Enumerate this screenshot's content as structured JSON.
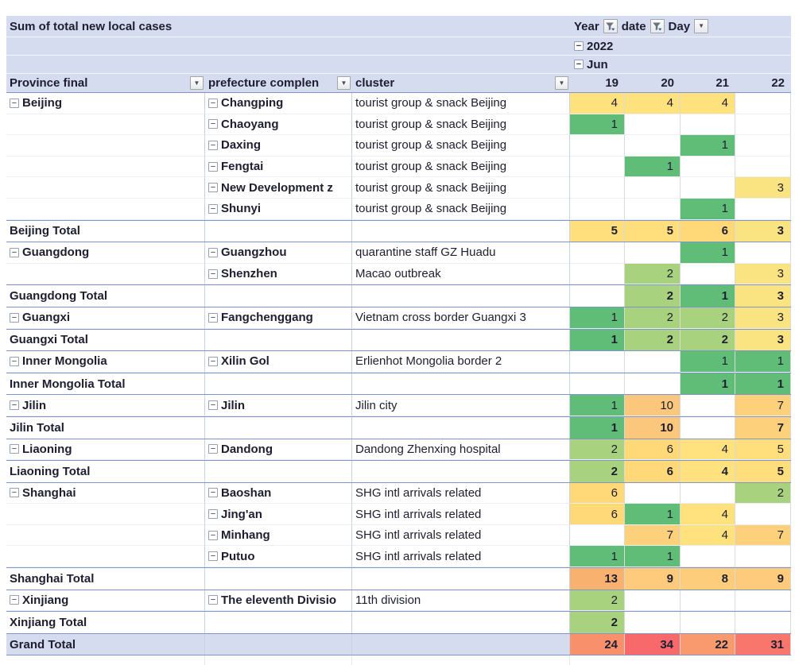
{
  "title": "Sum of total new local cases",
  "filters": {
    "year": {
      "label": "Year",
      "icon": "funnel-filter-icon"
    },
    "date": {
      "label": "date",
      "icon": "funnel-filter-icon"
    },
    "day": {
      "label": "Day",
      "icon": "chevron-down-icon"
    }
  },
  "year_value": "2022",
  "month_value": "Jun",
  "columns": {
    "province": "Province final",
    "prefecture": "prefecture complen",
    "cluster": "cluster",
    "days": [
      "19",
      "20",
      "21",
      "22"
    ]
  },
  "colors": {
    "header_bg": "#d5dcef",
    "total_border_blue": "#7e96cc",
    "gridline_gray": "#dadada",
    "gridline_label": "#c9d1e6",
    "scale_min_green": "#5fbd78",
    "scale_mid_yellow": "#fae481",
    "scale_max_red": "#f8696b"
  },
  "palette": {
    "1": "#5fbd78",
    "2": "#a9d27e",
    "3": "#fae481",
    "4": "#ffe17d",
    "5": "#ffde7b",
    "6": "#ffd978",
    "7": "#fdd17b",
    "8": "#fdcd7c",
    "9": "#fdcb7b",
    "10": "#fbc77d",
    "13": "#f9b16f",
    "22": "#f99a6e",
    "24": "#f9906c",
    "31": "#f8766c",
    "34": "#f8696b"
  },
  "rows": [
    {
      "type": "data",
      "province": "Beijing",
      "prefecture": "Changping",
      "cluster": "tourist group & snack Beijing",
      "values": [
        4,
        4,
        4,
        null
      ]
    },
    {
      "type": "data",
      "province": null,
      "prefecture": "Chaoyang",
      "cluster": "tourist group & snack Beijing",
      "values": [
        1,
        null,
        null,
        null
      ]
    },
    {
      "type": "data",
      "province": null,
      "prefecture": "Daxing",
      "cluster": "tourist group & snack Beijing",
      "values": [
        null,
        null,
        1,
        null
      ]
    },
    {
      "type": "data",
      "province": null,
      "prefecture": "Fengtai",
      "cluster": "tourist group & snack Beijing",
      "values": [
        null,
        1,
        null,
        null
      ]
    },
    {
      "type": "data",
      "province": null,
      "prefecture": "New Development z",
      "cluster": "tourist group & snack Beijing",
      "values": [
        null,
        null,
        null,
        3
      ]
    },
    {
      "type": "data",
      "province": null,
      "prefecture": "Shunyi",
      "cluster": "tourist group & snack Beijing",
      "values": [
        null,
        null,
        1,
        null
      ]
    },
    {
      "type": "total",
      "label": "Beijing Total",
      "values": [
        5,
        5,
        6,
        3
      ]
    },
    {
      "type": "data",
      "province": "Guangdong",
      "prefecture": "Guangzhou",
      "cluster": "quarantine staff GZ Huadu",
      "values": [
        null,
        null,
        1,
        null
      ]
    },
    {
      "type": "data",
      "province": null,
      "prefecture": "Shenzhen",
      "cluster": "Macao outbreak",
      "values": [
        null,
        2,
        null,
        3
      ]
    },
    {
      "type": "total",
      "label": "Guangdong Total",
      "values": [
        null,
        2,
        1,
        3
      ]
    },
    {
      "type": "data",
      "province": "Guangxi",
      "prefecture": "Fangchenggang",
      "cluster": "Vietnam cross border Guangxi 3",
      "values": [
        1,
        2,
        2,
        3
      ]
    },
    {
      "type": "total",
      "label": "Guangxi Total",
      "values": [
        1,
        2,
        2,
        3
      ]
    },
    {
      "type": "data",
      "province": "Inner Mongolia",
      "prefecture": "Xilin Gol",
      "cluster": "Erlienhot Mongolia border 2",
      "values": [
        null,
        null,
        1,
        1
      ]
    },
    {
      "type": "total",
      "label": "Inner Mongolia Total",
      "values": [
        null,
        null,
        1,
        1
      ]
    },
    {
      "type": "data",
      "province": "Jilin",
      "prefecture": "Jilin",
      "cluster": "Jilin city",
      "values": [
        1,
        10,
        null,
        7
      ]
    },
    {
      "type": "total",
      "label": "Jilin Total",
      "values": [
        1,
        10,
        null,
        7
      ]
    },
    {
      "type": "data",
      "province": "Liaoning",
      "prefecture": "Dandong",
      "cluster": "Dandong Zhenxing hospital",
      "values": [
        2,
        6,
        4,
        5
      ]
    },
    {
      "type": "total",
      "label": "Liaoning Total",
      "values": [
        2,
        6,
        4,
        5
      ]
    },
    {
      "type": "data",
      "province": "Shanghai",
      "prefecture": "Baoshan",
      "cluster": "SHG intl arrivals related",
      "values": [
        6,
        null,
        null,
        2
      ]
    },
    {
      "type": "data",
      "province": null,
      "prefecture": "Jing'an",
      "cluster": "SHG intl arrivals related",
      "values": [
        6,
        1,
        4,
        null
      ]
    },
    {
      "type": "data",
      "province": null,
      "prefecture": "Minhang",
      "cluster": "SHG intl arrivals related",
      "values": [
        null,
        7,
        4,
        7
      ]
    },
    {
      "type": "data",
      "province": null,
      "prefecture": "Putuo",
      "cluster": "SHG intl arrivals related",
      "values": [
        1,
        1,
        null,
        null
      ]
    },
    {
      "type": "total",
      "label": "Shanghai Total",
      "values": [
        13,
        9,
        8,
        9
      ]
    },
    {
      "type": "data",
      "province": "Xinjiang",
      "prefecture": "The eleventh Divisio",
      "cluster": "11th division",
      "values": [
        2,
        null,
        null,
        null
      ]
    },
    {
      "type": "total",
      "label": "Xinjiang Total",
      "values": [
        2,
        null,
        null,
        null
      ]
    },
    {
      "type": "grand",
      "label": "Grand Total",
      "values": [
        24,
        34,
        22,
        31
      ]
    }
  ]
}
